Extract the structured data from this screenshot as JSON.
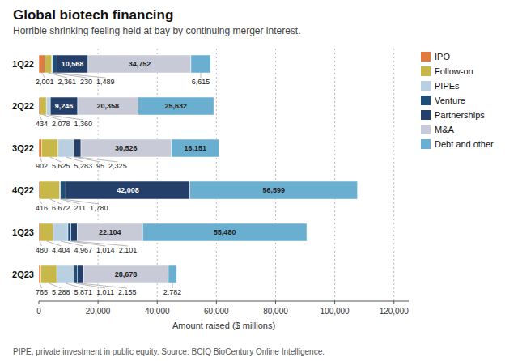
{
  "chart_data": {
    "type": "bar",
    "orientation": "horizontal",
    "stacked": true,
    "data_labels": true,
    "grid": true,
    "legend": "right",
    "title": "Global biotech financing",
    "subtitle": "Horrible shrinking feeling held at bay by continuing merger interest.",
    "footnote": "PIPE, private investment in public equity. Source: BCIQ BioCentury Online Intelligence.",
    "xlabel": "Amount raised ($ millions)",
    "categories": [
      "1Q22",
      "2Q22",
      "3Q22",
      "4Q22",
      "1Q23",
      "2Q23"
    ],
    "series": [
      {
        "name": "IPO",
        "color": "#E07B3F",
        "values": [
          2001,
          434,
          902,
          416,
          480,
          765
        ],
        "value_labels": [
          "2,001",
          "434",
          "902",
          "416",
          "480",
          "765"
        ]
      },
      {
        "name": "Follow-on",
        "color": "#C8B84A",
        "values": [
          2361,
          2078,
          5625,
          6672,
          4404,
          5288
        ],
        "value_labels": [
          "2,361",
          "2,078",
          "5,625",
          "6,672",
          "4,404",
          "5,288"
        ]
      },
      {
        "name": "PIPEs",
        "color": "#B8D0E0",
        "values": [
          230,
          1360,
          5283,
          211,
          4967,
          5871
        ],
        "value_labels": [
          "230",
          "1,360",
          "5,283",
          "211",
          "4,967",
          "5,871"
        ]
      },
      {
        "name": "Venture",
        "color": "#1F4E79",
        "values": [
          1489,
          0,
          95,
          1780,
          1014,
          1011
        ],
        "value_labels": [
          "1,489",
          null,
          "95",
          "1,780",
          "1,014",
          "1,011"
        ]
      },
      {
        "name": "Partnerships",
        "color": "#243F6A",
        "values": [
          10568,
          9246,
          2325,
          42008,
          2101,
          2155
        ],
        "value_labels": [
          "10,568",
          "9,246",
          "2,325",
          "42,008",
          "2,101",
          "2,155"
        ]
      },
      {
        "name": "M&A",
        "color": "#C8CAD8",
        "values": [
          34752,
          20358,
          30526,
          0,
          22104,
          28678
        ],
        "value_labels": [
          "34,752",
          "20,358",
          "30,526",
          null,
          "22,104",
          "28,678"
        ]
      },
      {
        "name": "Debt and other",
        "color": "#6AAFD0",
        "values": [
          6615,
          25632,
          16151,
          56599,
          55480,
          2782
        ],
        "value_labels": [
          "6,615",
          "25,632",
          "16,151",
          "56,599",
          "55,480",
          "2,782"
        ]
      }
    ],
    "xlim": [
      0,
      125000
    ],
    "xticks": [
      0,
      {
        "value": 20000,
        "label": "20,000"
      },
      {
        "value": 40000,
        "label": "40,000"
      },
      {
        "value": 60000,
        "label": "60,000"
      },
      {
        "value": 80000,
        "label": "80,000"
      },
      {
        "value": 100000,
        "label": "100,000"
      },
      {
        "value": 120000,
        "label": "120,000"
      }
    ]
  }
}
